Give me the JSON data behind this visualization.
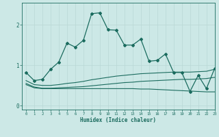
{
  "xlabel": "Humidex (Indice chaleur)",
  "xlim": [
    -0.5,
    23
  ],
  "ylim": [
    -0.1,
    2.55
  ],
  "yticks": [
    0,
    1,
    2
  ],
  "xticks": [
    0,
    1,
    2,
    3,
    4,
    5,
    6,
    7,
    8,
    9,
    10,
    11,
    12,
    13,
    14,
    15,
    16,
    17,
    18,
    19,
    20,
    21,
    22,
    23
  ],
  "bg_color": "#cce8e6",
  "line_color": "#1a6b5e",
  "grid_color": "#b8d8d5",
  "main_line": {
    "x": [
      0,
      1,
      2,
      3,
      4,
      5,
      6,
      7,
      8,
      9,
      10,
      11,
      12,
      13,
      14,
      15,
      16,
      17,
      18,
      19,
      20,
      21,
      22,
      23
    ],
    "y": [
      0.82,
      0.62,
      0.65,
      0.9,
      1.08,
      1.55,
      1.45,
      1.62,
      2.28,
      2.3,
      1.88,
      1.87,
      1.5,
      1.5,
      1.65,
      1.1,
      1.12,
      1.28,
      0.82,
      0.82,
      0.35,
      0.75,
      0.42,
      0.92
    ]
  },
  "line2": {
    "x": [
      0,
      1,
      2,
      3,
      4,
      5,
      6,
      7,
      8,
      9,
      10,
      11,
      12,
      13,
      14,
      15,
      16,
      17,
      18,
      19,
      20,
      21,
      22,
      23
    ],
    "y": [
      0.62,
      0.52,
      0.5,
      0.5,
      0.52,
      0.55,
      0.57,
      0.6,
      0.64,
      0.67,
      0.7,
      0.73,
      0.75,
      0.77,
      0.79,
      0.8,
      0.81,
      0.82,
      0.83,
      0.83,
      0.83,
      0.84,
      0.85,
      0.9
    ]
  },
  "line3": {
    "x": [
      0,
      1,
      2,
      3,
      4,
      5,
      6,
      7,
      8,
      9,
      10,
      11,
      12,
      13,
      14,
      15,
      16,
      17,
      18,
      19,
      20,
      21,
      22,
      23
    ],
    "y": [
      0.55,
      0.46,
      0.43,
      0.43,
      0.44,
      0.45,
      0.46,
      0.47,
      0.49,
      0.51,
      0.53,
      0.55,
      0.57,
      0.58,
      0.6,
      0.61,
      0.62,
      0.63,
      0.64,
      0.65,
      0.65,
      0.66,
      0.67,
      0.7
    ]
  },
  "line4": {
    "x": [
      0,
      1,
      2,
      3,
      4,
      5,
      6,
      7,
      8,
      9,
      10,
      11,
      12,
      13,
      14,
      15,
      16,
      17,
      18,
      19,
      20,
      21,
      22,
      23
    ],
    "y": [
      0.52,
      0.44,
      0.42,
      0.42,
      0.42,
      0.42,
      0.42,
      0.42,
      0.42,
      0.42,
      0.42,
      0.42,
      0.42,
      0.42,
      0.41,
      0.41,
      0.4,
      0.39,
      0.38,
      0.37,
      0.36,
      0.35,
      0.34,
      0.34
    ]
  }
}
